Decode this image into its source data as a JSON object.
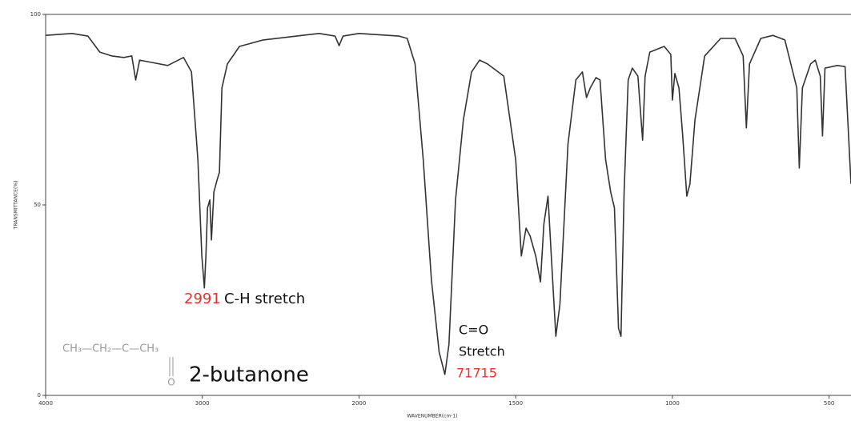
{
  "chart_data": {
    "type": "line",
    "ylabel": "TRANSMITTANCE(%)",
    "xlabel": "WAVENUMBER(cm-1)",
    "x": [
      4000,
      3832,
      3730,
      3654,
      3578,
      3501,
      3450,
      3425,
      3400,
      3323,
      3221,
      3120,
      3069,
      3028,
      3003,
      2987,
      2977,
      2967,
      2952,
      2942,
      2926,
      2906,
      2891,
      2875,
      2840,
      2763,
      2611,
      2254,
      2153,
      2127,
      2102,
      2000,
      1872,
      1846,
      1821,
      1795,
      1769,
      1744,
      1726,
      1713,
      1692,
      1667,
      1641,
      1615,
      1590,
      1538,
      1500,
      1482,
      1467,
      1454,
      1436,
      1421,
      1410,
      1397,
      1385,
      1372,
      1359,
      1333,
      1308,
      1287,
      1274,
      1262,
      1244,
      1231,
      1213,
      1197,
      1185,
      1172,
      1164,
      1154,
      1141,
      1128,
      1110,
      1095,
      1087,
      1072,
      1026,
      1005,
      1000,
      992,
      979,
      967,
      954,
      944,
      928,
      897,
      846,
      800,
      774,
      764,
      754,
      718,
      679,
      641,
      603,
      595,
      585,
      559,
      544,
      528,
      521,
      513,
      474,
      449,
      430
    ],
    "values": [
      94.5,
      95,
      94.3,
      90.1,
      89.1,
      88.7,
      89.1,
      82.8,
      88,
      87.4,
      86.6,
      88.7,
      84.9,
      61.8,
      36.6,
      28.2,
      36.6,
      49.2,
      51.3,
      40.8,
      53.4,
      56.5,
      58.6,
      80.7,
      87,
      91.6,
      93.3,
      95,
      94.3,
      91.8,
      94.3,
      95,
      94.3,
      93.7,
      87,
      61.8,
      30.3,
      11.3,
      5.5,
      13.4,
      51.3,
      72.3,
      84.9,
      88,
      87,
      83.8,
      61.8,
      36.6,
      43.9,
      41.8,
      36.6,
      29.8,
      45,
      52.3,
      34.5,
      15.5,
      23.9,
      66,
      82.8,
      84.9,
      78.2,
      80.7,
      83.4,
      82.8,
      61.8,
      53.4,
      49.2,
      17.6,
      15.5,
      53.4,
      82.8,
      85.9,
      83.8,
      67,
      83.8,
      90.1,
      91.6,
      89.5,
      77.5,
      84.5,
      80.7,
      68.1,
      52.3,
      55.5,
      72.3,
      89.1,
      93.7,
      93.7,
      89.1,
      70.2,
      87,
      93.7,
      94.5,
      93.3,
      80.7,
      59.7,
      80.7,
      87,
      88,
      83.8,
      68.1,
      85.9,
      86.6,
      86.3,
      55.5
    ],
    "color": "#333333",
    "xlim": [
      4000,
      430
    ],
    "xticks": [
      4000,
      3000,
      2000,
      1500,
      1000,
      500
    ],
    "ylim": [
      0,
      100
    ],
    "yticks": [
      0,
      50,
      100
    ],
    "annotations": [
      {
        "text": "2991",
        "color": "#e8302a"
      },
      {
        "text": "C-H stretch",
        "color": "#111111"
      },
      {
        "text": "C=O",
        "color": "#111111"
      },
      {
        "text": "Stretch",
        "color": "#111111"
      },
      {
        "text": "71715",
        "color": "#e8302a"
      },
      {
        "text": "CH₃—CH₂—C—CH₃",
        "color": "#999999"
      },
      {
        "text": "O",
        "color": "#999999"
      },
      {
        "text": "2-butanone",
        "color": "#111111"
      }
    ]
  }
}
